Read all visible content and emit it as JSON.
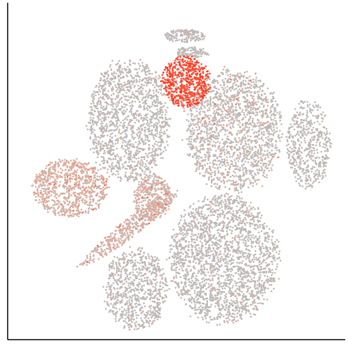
{
  "chart_data": {
    "type": "scatter",
    "title": "",
    "xlabel": "",
    "ylabel": "",
    "xlim": [
      0,
      100
    ],
    "ylim": [
      0,
      100
    ],
    "grid": false,
    "legend": "none",
    "colors": {
      "background_points": "#bdb8b6",
      "low_expression": "#e8a894",
      "high_expression": "#ff2a10",
      "axis": "#000000"
    },
    "clusters": [
      {
        "name": "cluster-top-small-a",
        "center": [
          52.5,
          90.2
        ],
        "radius": [
          6.0,
          1.9
        ],
        "n": 160,
        "expr_frac": 0.0,
        "expr_mode": "sparse"
      },
      {
        "name": "cluster-top-small-b",
        "center": [
          54.5,
          85.2
        ],
        "radius": [
          5.0,
          1.6
        ],
        "n": 110,
        "expr_frac": 0.0,
        "expr_mode": "sparse"
      },
      {
        "name": "cluster-red-hotspot",
        "center": [
          52.8,
          76.5
        ],
        "radius": [
          7.0,
          7.5
        ],
        "n": 650,
        "expr_frac": 0.95,
        "expr_mode": "high"
      },
      {
        "name": "cluster-left-upper",
        "center": [
          36.0,
          65.0
        ],
        "radius": [
          12.0,
          18.0
        ],
        "n": 1500,
        "expr_frac": 0.05,
        "expr_mode": "sparse"
      },
      {
        "name": "cluster-right-upper",
        "center": [
          67.0,
          62.0
        ],
        "radius": [
          14.0,
          18.0
        ],
        "n": 1750,
        "expr_frac": 0.15,
        "expr_mode": "mixed"
      },
      {
        "name": "cluster-far-right",
        "center": [
          89.0,
          58.0
        ],
        "radius": [
          6.5,
          13.0
        ],
        "n": 520,
        "expr_frac": 0.02,
        "expr_mode": "sparse"
      },
      {
        "name": "cluster-left-salmon",
        "center": [
          18.5,
          45.0
        ],
        "radius": [
          11.0,
          8.5
        ],
        "n": 850,
        "expr_frac": 0.75,
        "expr_mode": "mixed"
      },
      {
        "name": "cluster-diagonal-stream",
        "center": [
          36.0,
          33.0
        ],
        "radius": [
          18.0,
          2.6
        ],
        "n": 450,
        "expr_frac": 0.6,
        "expr_mode": "mixed",
        "angle_deg": 38
      },
      {
        "name": "cluster-center-junction",
        "center": [
          43.0,
          42.0
        ],
        "radius": [
          5.5,
          7.0
        ],
        "n": 400,
        "expr_frac": 0.55,
        "expr_mode": "mixed"
      },
      {
        "name": "cluster-bottom-right-large",
        "center": [
          64.0,
          24.0
        ],
        "radius": [
          16.0,
          19.0
        ],
        "n": 2200,
        "expr_frac": 0.02,
        "expr_mode": "sparse"
      },
      {
        "name": "cluster-bottom-left",
        "center": [
          38.0,
          15.0
        ],
        "radius": [
          9.5,
          12.0
        ],
        "n": 800,
        "expr_frac": 0.04,
        "expr_mode": "sparse"
      }
    ]
  }
}
